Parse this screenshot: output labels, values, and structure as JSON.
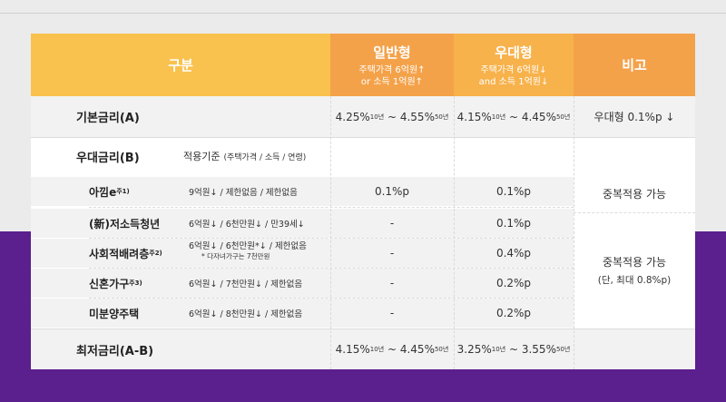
{
  "header": {
    "category": "구분",
    "general": {
      "title": "일반형",
      "line1": "주택가격 6억원↑",
      "line2": "or 소득 1억원↑"
    },
    "preferential": {
      "title": "우대형",
      "line1": "주택가격 6억원↓",
      "line2": "and 소득 1억원↓"
    },
    "note": "비고"
  },
  "base_rate": {
    "label": "기본금리(A)",
    "general": {
      "low": "4.25%",
      "low_sup": "10년",
      "sep": " ~ ",
      "high": "4.55%",
      "high_sup": "50년"
    },
    "preferential": {
      "low": "4.15%",
      "low_sup": "10년",
      "sep": " ~ ",
      "high": "4.45%",
      "high_sup": "50년"
    },
    "note": "우대형 0.1%p ↓"
  },
  "pref_rate": {
    "label": "우대금리(B)",
    "criteria_title": "적용기준",
    "criteria_sub": "(주택가격 / 소득 / 연령)",
    "rows": [
      {
        "name": "아낌e",
        "sup": "주1)",
        "criteria": "9억원↓ / 제한없음 / 제한없음",
        "general": "0.1%p",
        "preferential": "0.1%p"
      },
      {
        "name": "(新)저소득청년",
        "sup": "",
        "criteria": "6억원↓ / 6천만원↓ / 만39세↓",
        "general": "-",
        "preferential": "0.1%p"
      },
      {
        "name": "사회적배려층",
        "sup": "주2)",
        "criteria": "6억원↓ / 6천만원*↓ / 제한없음",
        "criteria_note": "* 다자녀가구는 7천만원",
        "general": "-",
        "preferential": "0.4%p"
      },
      {
        "name": "신혼가구",
        "sup": "주3)",
        "criteria": "6억원↓ / 7천만원↓ / 제한없음",
        "general": "-",
        "preferential": "0.2%p"
      },
      {
        "name": "미분양주택",
        "sup": "",
        "criteria": "6억원↓ / 8천만원↓ / 제한없음",
        "general": "-",
        "preferential": "0.2%p"
      }
    ],
    "note_top": "중복적용 가능",
    "note_bottom_1": "중복적용 가능",
    "note_bottom_2": "(단, 최대 0.8%p)"
  },
  "min_rate": {
    "label": "최저금리(A-B)",
    "general": {
      "low": "4.15%",
      "low_sup": "10년",
      "sep": " ~ ",
      "high": "4.45%",
      "high_sup": "50년"
    },
    "preferential": {
      "low": "3.25%",
      "low_sup": "10년",
      "sep": " ~ ",
      "high": "3.55%",
      "high_sup": "50년"
    }
  }
}
